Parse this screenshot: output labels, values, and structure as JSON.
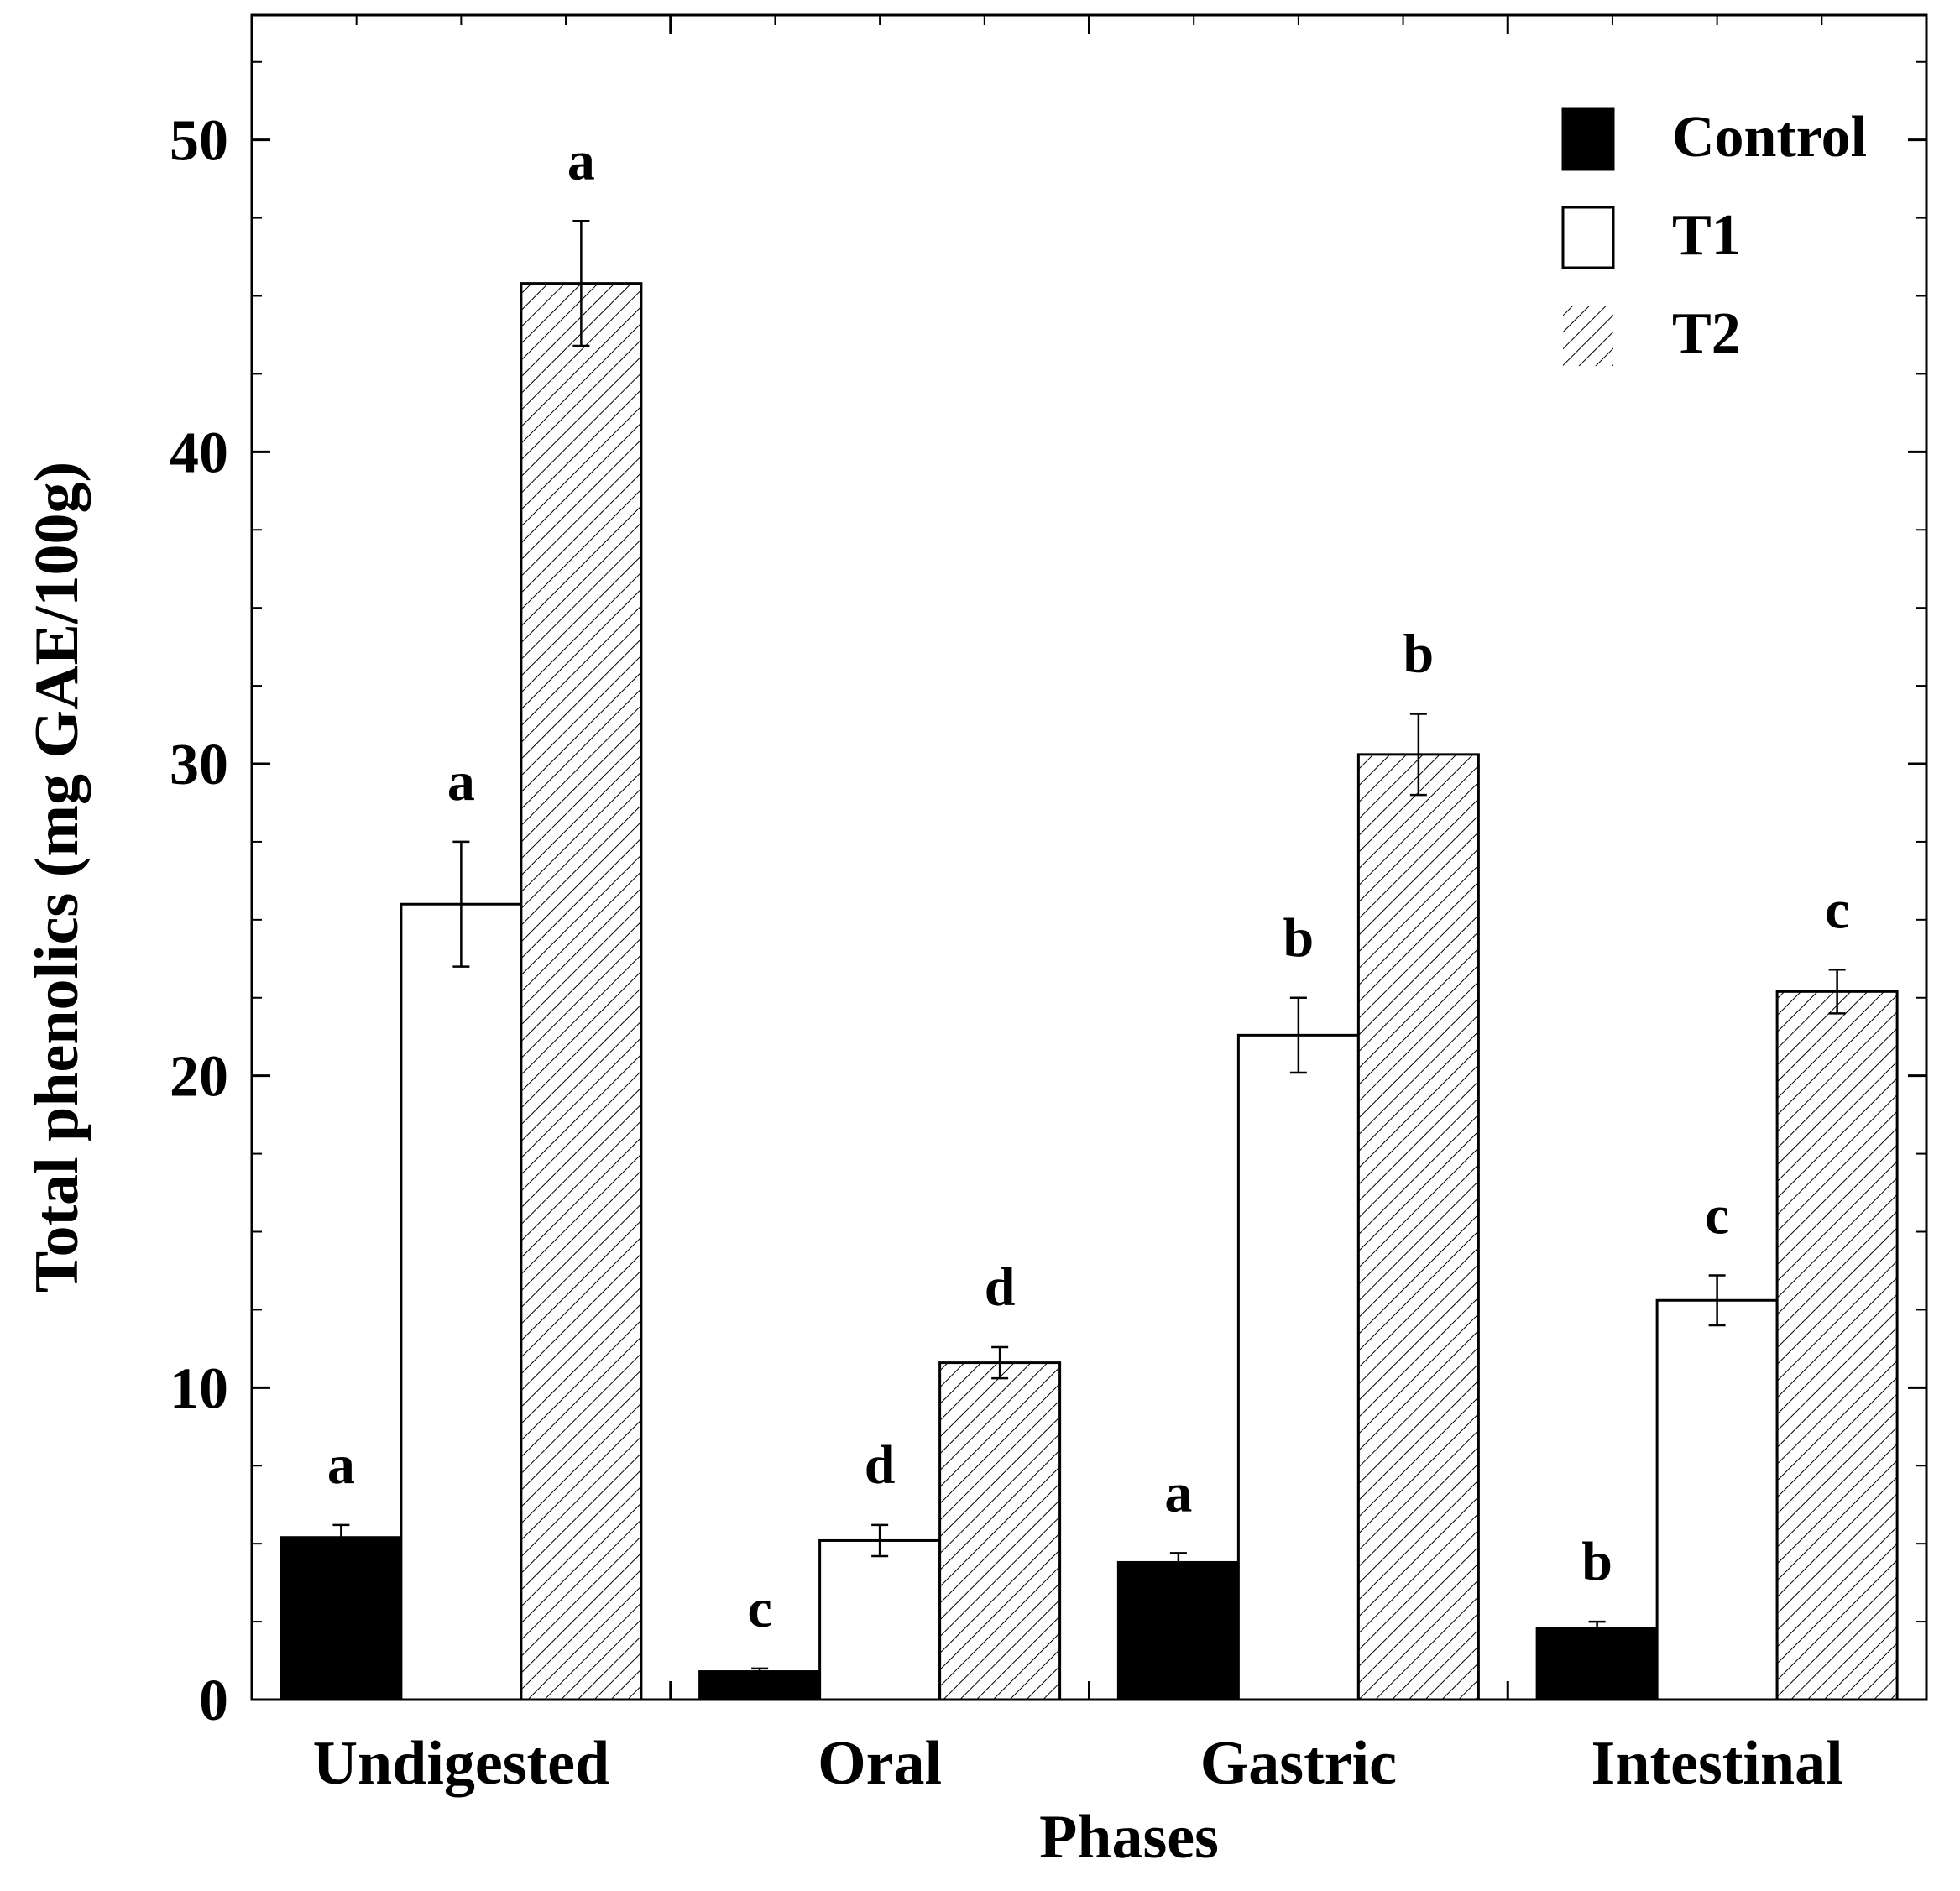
{
  "chart_data": {
    "type": "bar",
    "title": "",
    "xlabel": "Phases",
    "ylabel": "Total phenolics (mg GAE/100g)",
    "ylim": [
      0,
      54
    ],
    "yticks": [
      0,
      10,
      20,
      30,
      40,
      50
    ],
    "categories": [
      "Undigested",
      "Oral",
      "Gastric",
      "Intestinal"
    ],
    "series": [
      {
        "name": "Control",
        "pattern": "solid",
        "values": [
          5.2,
          0.9,
          4.4,
          2.3
        ],
        "errors": [
          0.4,
          0.1,
          0.3,
          0.2
        ],
        "letters": [
          "a",
          "c",
          "a",
          "b"
        ]
      },
      {
        "name": "T1",
        "pattern": "empty",
        "values": [
          25.5,
          5.1,
          21.3,
          12.8
        ],
        "errors": [
          2.0,
          0.5,
          1.2,
          0.8
        ],
        "letters": [
          "a",
          "d",
          "b",
          "c"
        ]
      },
      {
        "name": "T2",
        "pattern": "hatch",
        "values": [
          45.4,
          10.8,
          30.3,
          22.7
        ],
        "errors": [
          2.0,
          0.5,
          1.3,
          0.7
        ],
        "letters": [
          "a",
          "d",
          "b",
          "c"
        ]
      }
    ],
    "legend": [
      "Control",
      "T1",
      "T2"
    ],
    "legend_position": "top-right",
    "grid": false
  }
}
